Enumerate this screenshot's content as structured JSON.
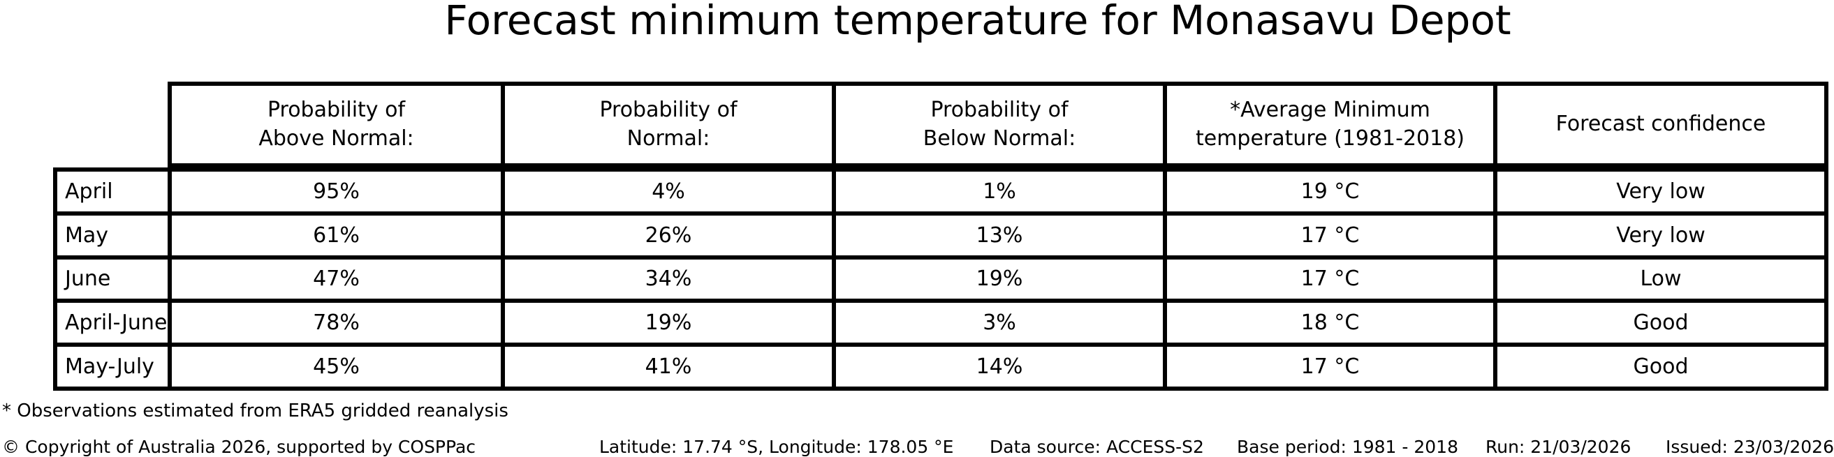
{
  "chart_data": {
    "type": "table",
    "title": "Forecast minimum temperature for Monasavu Depot",
    "columns": [
      "Probability of\nAbove Normal:",
      "Probability of\nNormal:",
      "Probability of\nBelow Normal:",
      "*Average Minimum\ntemperature (1981-2018)",
      "Forecast confidence"
    ],
    "rows": [
      {
        "label": "April",
        "values": [
          "95%",
          "4%",
          "1%",
          "19 °C",
          "Very low"
        ]
      },
      {
        "label": "May",
        "values": [
          "61%",
          "26%",
          "13%",
          "17 °C",
          "Very low"
        ]
      },
      {
        "label": "June",
        "values": [
          "47%",
          "34%",
          "19%",
          "17 °C",
          "Low"
        ]
      },
      {
        "label": "April-June",
        "values": [
          "78%",
          "19%",
          "3%",
          "18 °C",
          "Good"
        ]
      },
      {
        "label": "May-July",
        "values": [
          "45%",
          "41%",
          "14%",
          "17 °C",
          "Good"
        ]
      }
    ],
    "legend_position": "none",
    "grid": "table-borders"
  },
  "footnote": "* Observations estimated from ERA5 gridded reanalysis",
  "footer": {
    "copyright": "© Copyright of Australia 2026, supported by COSPPac",
    "location": "Latitude: 17.74 °S, Longitude: 178.05 °E",
    "data_source": "Data source: ACCESS-S2",
    "base_period": "Base period: 1981 - 2018",
    "run": "Run: 21/03/2026",
    "issued": "Issued: 23/03/2026"
  },
  "colors": {
    "background": "#ffffff",
    "text": "#000000",
    "table_border": "#000000"
  }
}
